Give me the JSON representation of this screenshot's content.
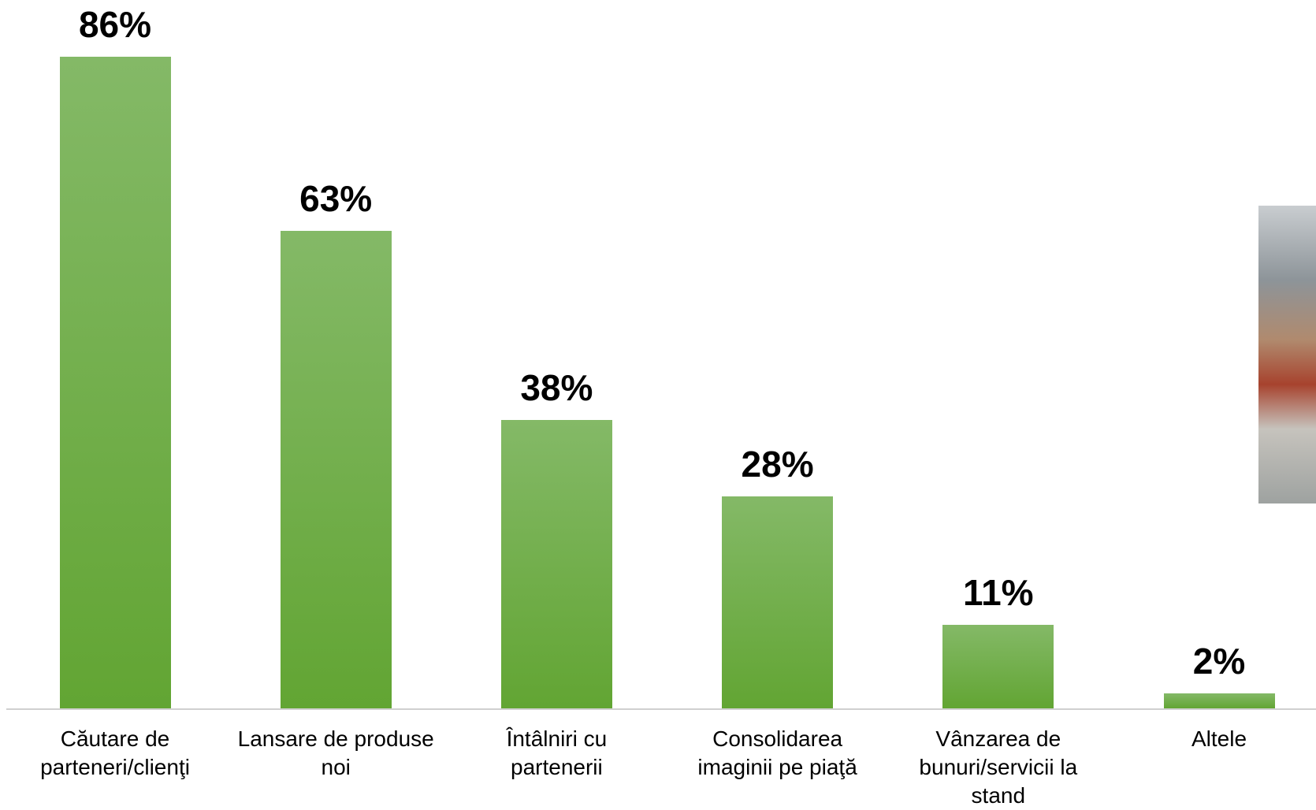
{
  "chart_data": {
    "type": "bar",
    "categories": [
      "Căutare de parteneri/clienţi",
      "Lansare de produse noi",
      "Întâlniri cu partenerii",
      "Consolidarea imaginii pe piaţă",
      "Vânzarea de bunuri/servicii la stand",
      "Altele"
    ],
    "values": [
      86,
      63,
      38,
      28,
      11,
      2
    ],
    "value_labels": [
      "86%",
      "63%",
      "38%",
      "28%",
      "11%",
      "2%"
    ],
    "color": "#6aab3f"
  }
}
